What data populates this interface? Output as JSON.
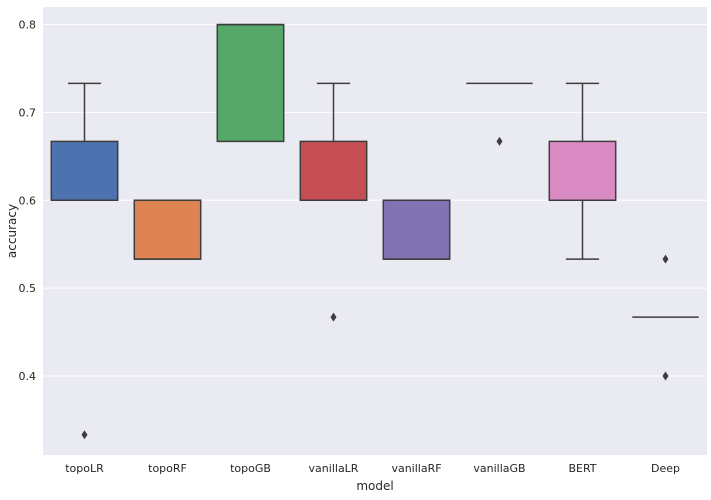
{
  "chart_data": {
    "type": "box",
    "title": "",
    "xlabel": "model",
    "ylabel": "accuracy",
    "ylim": [
      0.31,
      0.82
    ],
    "yticks": [
      0.4,
      0.5,
      0.6,
      0.7,
      0.8
    ],
    "ytick_labels": [
      "0.4",
      "0.5",
      "0.6",
      "0.7",
      "0.8"
    ],
    "grid": true,
    "categories": [
      "topoLR",
      "topoRF",
      "topoGB",
      "vanillaLR",
      "vanillaRF",
      "vanillaGB",
      "BERT",
      "Deep"
    ],
    "boxes": [
      {
        "name": "topoLR",
        "q1": 0.6,
        "median": 0.6,
        "q3": 0.667,
        "whisker_low": 0.6,
        "whisker_high": 0.733,
        "outliers": [
          0.333
        ],
        "color": "#4c72b0"
      },
      {
        "name": "topoRF",
        "q1": 0.533,
        "median": 0.533,
        "q3": 0.6,
        "whisker_low": 0.533,
        "whisker_high": 0.6,
        "outliers": [],
        "color": "#dd8452"
      },
      {
        "name": "topoGB",
        "q1": 0.667,
        "median": 0.8,
        "q3": 0.8,
        "whisker_low": 0.667,
        "whisker_high": 0.8,
        "outliers": [],
        "color": "#55a868"
      },
      {
        "name": "vanillaLR",
        "q1": 0.6,
        "median": 0.6,
        "q3": 0.667,
        "whisker_low": 0.6,
        "whisker_high": 0.733,
        "outliers": [
          0.467
        ],
        "color": "#c44e52"
      },
      {
        "name": "vanillaRF",
        "q1": 0.533,
        "median": 0.533,
        "q3": 0.6,
        "whisker_low": 0.533,
        "whisker_high": 0.6,
        "outliers": [],
        "color": "#8172b3"
      },
      {
        "name": "vanillaGB",
        "q1": 0.733,
        "median": 0.733,
        "q3": 0.733,
        "whisker_low": 0.733,
        "whisker_high": 0.733,
        "outliers": [
          0.667
        ],
        "color": "#937860"
      },
      {
        "name": "BERT",
        "q1": 0.6,
        "median": 0.6,
        "q3": 0.667,
        "whisker_low": 0.533,
        "whisker_high": 0.733,
        "outliers": [],
        "color": "#da8bc3"
      },
      {
        "name": "Deep",
        "q1": 0.467,
        "median": 0.467,
        "q3": 0.467,
        "whisker_low": 0.467,
        "whisker_high": 0.467,
        "outliers": [
          0.533,
          0.4
        ],
        "color": "#8c8c8c"
      }
    ],
    "colors": {
      "plot_background": "#eaeaf2",
      "grid": "#ffffff",
      "line": "#3d3d3d"
    }
  }
}
